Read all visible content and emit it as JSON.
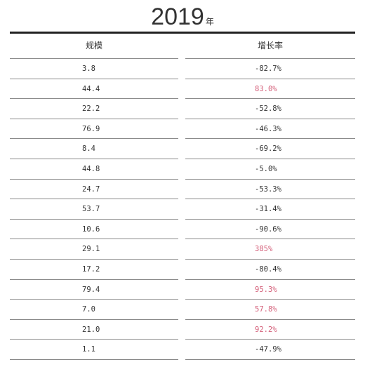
{
  "title": {
    "year": "2019",
    "unit": "年"
  },
  "table": {
    "headers": {
      "scale": "规模",
      "growth": "增长率"
    },
    "rows": [
      {
        "scale": "3.8",
        "growth": "-82.7%",
        "positive": false
      },
      {
        "scale": "44.4",
        "growth": "83.0%",
        "positive": true
      },
      {
        "scale": "22.2",
        "growth": "-52.8%",
        "positive": false
      },
      {
        "scale": "76.9",
        "growth": "-46.3%",
        "positive": false
      },
      {
        "scale": "8.4",
        "growth": "-69.2%",
        "positive": false
      },
      {
        "scale": "44.8",
        "growth": "-5.0%",
        "positive": false
      },
      {
        "scale": "24.7",
        "growth": "-53.3%",
        "positive": false
      },
      {
        "scale": "53.7",
        "growth": "-31.4%",
        "positive": false
      },
      {
        "scale": "10.6",
        "growth": "-90.6%",
        "positive": false
      },
      {
        "scale": "29.1",
        "growth": "385%",
        "positive": true
      },
      {
        "scale": "17.2",
        "growth": "-80.4%",
        "positive": false
      },
      {
        "scale": "79.4",
        "growth": "95.3%",
        "positive": true
      },
      {
        "scale": "7.0",
        "growth": "57.8%",
        "positive": true
      },
      {
        "scale": "21.0",
        "growth": "92.2%",
        "positive": true
      },
      {
        "scale": "1.1",
        "growth": "-47.9%",
        "positive": false
      }
    ]
  },
  "colors": {
    "text": "#333333",
    "positive": "#d4607a",
    "rule": "#222222",
    "row_line": "#8a8a8a"
  }
}
